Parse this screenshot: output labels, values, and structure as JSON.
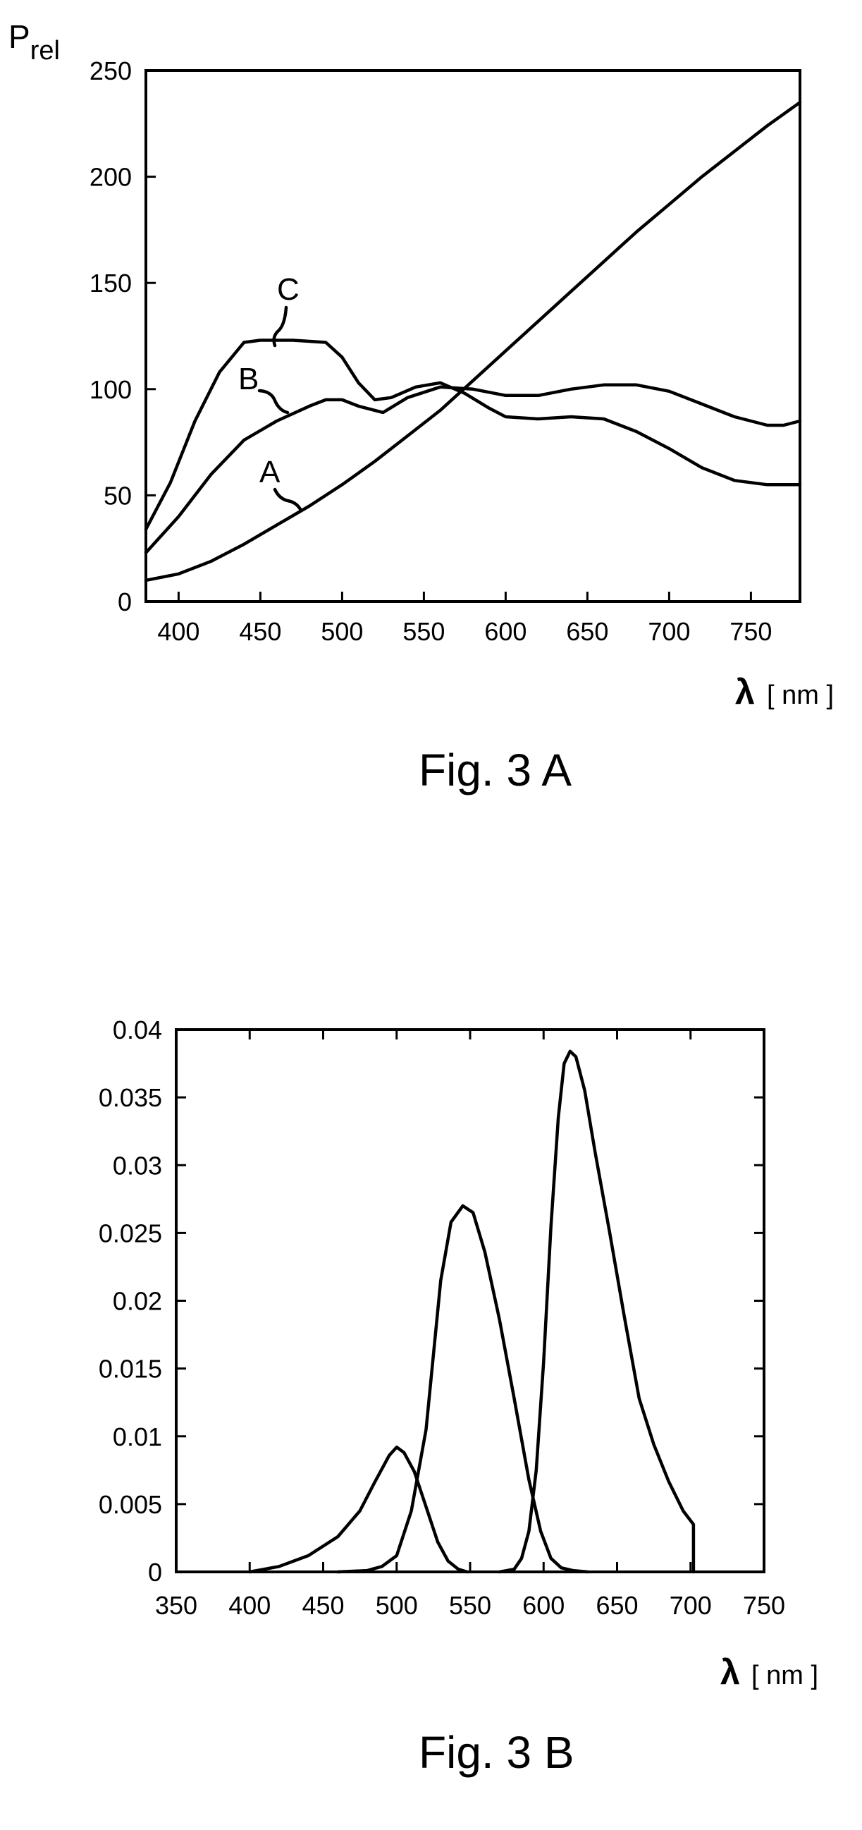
{
  "figures": {
    "fig3a_caption": "Fig. 3 A",
    "fig3b_caption": "Fig. 3 B"
  },
  "chart_data": [
    {
      "type": "line",
      "caption": "Fig. 3 A",
      "ylabel": "P",
      "ylabel_sub": "rel",
      "xlabel_symbol": "λ",
      "xlabel_unit": "[ nm ]",
      "xlim": [
        380,
        780
      ],
      "ylim": [
        0,
        250
      ],
      "xticks": [
        400,
        450,
        500,
        550,
        600,
        650,
        700,
        750
      ],
      "yticks": [
        0,
        50,
        100,
        150,
        200,
        250
      ],
      "grid": false,
      "series": [
        {
          "name": "A",
          "x": [
            380,
            400,
            420,
            440,
            460,
            480,
            500,
            520,
            540,
            560,
            580,
            600,
            620,
            640,
            660,
            680,
            700,
            720,
            740,
            760,
            780
          ],
          "values": [
            10,
            13,
            19,
            27,
            36,
            45,
            55,
            66,
            78,
            90,
            104,
            118,
            132,
            146,
            160,
            174,
            187,
            200,
            212,
            224,
            235
          ]
        },
        {
          "name": "B",
          "x": [
            380,
            400,
            420,
            440,
            460,
            480,
            490,
            500,
            510,
            525,
            540,
            560,
            580,
            600,
            620,
            640,
            660,
            680,
            700,
            720,
            740,
            760,
            770,
            780
          ],
          "values": [
            23,
            40,
            60,
            76,
            85,
            92,
            95,
            95,
            92,
            89,
            96,
            101,
            100,
            97,
            97,
            100,
            102,
            102,
            99,
            93,
            87,
            83,
            83,
            85
          ]
        },
        {
          "name": "C",
          "x": [
            380,
            395,
            410,
            425,
            440,
            450,
            470,
            490,
            500,
            510,
            520,
            530,
            545,
            560,
            575,
            590,
            600,
            620,
            640,
            660,
            680,
            700,
            720,
            740,
            760,
            780
          ],
          "values": [
            34,
            56,
            85,
            108,
            122,
            123,
            123,
            122,
            115,
            103,
            95,
            96,
            101,
            103,
            98,
            91,
            87,
            86,
            87,
            86,
            80,
            72,
            63,
            57,
            55,
            55
          ]
        }
      ]
    },
    {
      "type": "line",
      "caption": "Fig. 3 B",
      "ylabel": "",
      "xlabel_symbol": "λ",
      "xlabel_unit": "[ nm ]",
      "xlim": [
        350,
        750
      ],
      "ylim": [
        0,
        0.04
      ],
      "xticks": [
        350,
        400,
        450,
        500,
        550,
        600,
        650,
        700,
        750
      ],
      "yticks": [
        "0",
        "0.005",
        "0.01",
        "0.015",
        "0.02",
        "0.025",
        "0.03",
        "0.035",
        "0.04"
      ],
      "grid": false,
      "series": [
        {
          "x": [
            400,
            420,
            440,
            460,
            475,
            485,
            495,
            500,
            505,
            512,
            520,
            528,
            535,
            542,
            548
          ],
          "values": [
            0,
            0.0004,
            0.0012,
            0.0026,
            0.0045,
            0.0066,
            0.0086,
            0.0092,
            0.0088,
            0.0074,
            0.0048,
            0.0022,
            0.0008,
            0.0002,
            0
          ]
        },
        {
          "x": [
            460,
            480,
            490,
            500,
            510,
            520,
            530,
            537,
            545,
            552,
            560,
            570,
            580,
            590,
            598,
            605,
            612,
            620,
            630
          ],
          "values": [
            0,
            0.0001,
            0.0004,
            0.0012,
            0.0045,
            0.0105,
            0.0215,
            0.0258,
            0.027,
            0.0265,
            0.0236,
            0.0186,
            0.0128,
            0.0068,
            0.003,
            0.001,
            0.0003,
            0.0001,
            0
          ]
        },
        {
          "x": [
            570,
            580,
            585,
            590,
            595,
            600,
            605,
            610,
            614,
            618,
            622,
            628,
            635,
            645,
            655,
            665,
            675,
            685,
            695,
            702,
            702
          ],
          "values": [
            0,
            0.0002,
            0.001,
            0.003,
            0.0075,
            0.0155,
            0.0255,
            0.0335,
            0.0375,
            0.0384,
            0.038,
            0.0355,
            0.031,
            0.025,
            0.0188,
            0.0128,
            0.0094,
            0.0067,
            0.0045,
            0.0035,
            0
          ]
        }
      ]
    }
  ]
}
